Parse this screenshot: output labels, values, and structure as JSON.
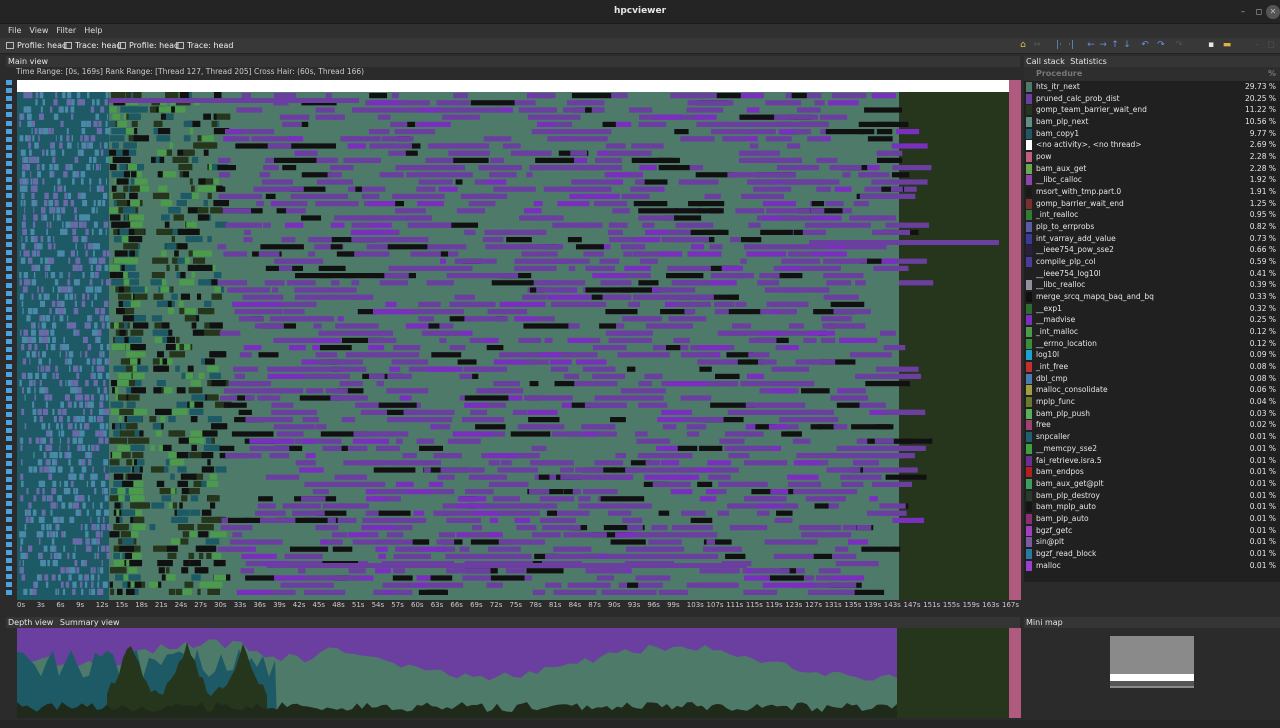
{
  "window": {
    "title": "hpcviewer"
  },
  "menu": [
    "File",
    "View",
    "Filter",
    "Help"
  ],
  "tabs": [
    "Profile: head",
    "Trace: head",
    "Profile: head",
    "Trace: head"
  ],
  "main": {
    "tab_label": "Main view",
    "info": "Time Range: [0s, 169s]  Rank Range: [Thread 127, Thread 205]  Cross Hair: (60s, Thread 166)",
    "xticks": [
      "0s",
      "3s",
      "6s",
      "9s",
      "12s",
      "15s",
      "18s",
      "21s",
      "24s",
      "27s",
      "30s",
      "33s",
      "36s",
      "39s",
      "42s",
      "45s",
      "48s",
      "51s",
      "54s",
      "57s",
      "60s",
      "63s",
      "66s",
      "69s",
      "72s",
      "75s",
      "78s",
      "81s",
      "84s",
      "87s",
      "90s",
      "93s",
      "96s",
      "99s",
      "103s",
      "107s",
      "111s",
      "115s",
      "119s",
      "123s",
      "127s",
      "131s",
      "135s",
      "139s",
      "143s",
      "147s",
      "151s",
      "155s",
      "159s",
      "163s",
      "167s"
    ]
  },
  "bottom": {
    "depth_tab": "Depth view",
    "summary_tab": "Summary view"
  },
  "right": {
    "tabs": [
      "Call stack",
      "Statistics"
    ],
    "col_procedure": "Procedure",
    "col_pct": "%",
    "rows": [
      {
        "name": "hts_itr_next",
        "pct": "29.73 %",
        "color": "#4e7a6a"
      },
      {
        "name": "pruned_calc_prob_dist",
        "pct": "20.25 %",
        "color": "#6b3fa0"
      },
      {
        "name": "gomp_team_barrier_wait_end",
        "pct": "11.22 %",
        "color": "#26361d"
      },
      {
        "name": "bam_plp_next",
        "pct": "10.56 %",
        "color": "#5f8f80"
      },
      {
        "name": "bam_copy1",
        "pct": "9.77 %",
        "color": "#1e5a66"
      },
      {
        "name": "<no activity>, <no thread>",
        "pct": "2.69 %",
        "color": "#ffffff"
      },
      {
        "name": "pow",
        "pct": "2.28 %",
        "color": "#c06080"
      },
      {
        "name": "bam_aux_get",
        "pct": "2.28 %",
        "color": "#6aa84f"
      },
      {
        "name": "__libc_calloc",
        "pct": "1.92 %",
        "color": "#8e44ad"
      },
      {
        "name": "msort_with_tmp.part.0",
        "pct": "1.91 %",
        "color": "#1a1a1a"
      },
      {
        "name": "gomp_barrier_wait_end",
        "pct": "1.25 %",
        "color": "#7a2e2e"
      },
      {
        "name": "_int_realloc",
        "pct": "0.95 %",
        "color": "#2e7d32"
      },
      {
        "name": "plp_to_errprobs",
        "pct": "0.82 %",
        "color": "#5a5aa8"
      },
      {
        "name": "int_varray_add_value",
        "pct": "0.73 %",
        "color": "#3a3a9a"
      },
      {
        "name": "__ieee754_pow_sse2",
        "pct": "0.66 %",
        "color": "#2a1f40"
      },
      {
        "name": "compile_plp_col",
        "pct": "0.59 %",
        "color": "#4b3a9a"
      },
      {
        "name": "__ieee754_log10l",
        "pct": "0.41 %",
        "color": "#202020"
      },
      {
        "name": "__libc_realloc",
        "pct": "0.39 %",
        "color": "#9090a0"
      },
      {
        "name": "merge_srcq_mapq_baq_and_bq",
        "pct": "0.33 %",
        "color": "#101010"
      },
      {
        "name": "__exp1",
        "pct": "0.32 %",
        "color": "#2e6b2e"
      },
      {
        "name": "__madvise",
        "pct": "0.25 %",
        "color": "#7b2fbf"
      },
      {
        "name": "_int_malloc",
        "pct": "0.12 %",
        "color": "#4c9a4c"
      },
      {
        "name": "__errno_location",
        "pct": "0.12 %",
        "color": "#3c8c3c"
      },
      {
        "name": "log10l",
        "pct": "0.09 %",
        "color": "#1aa3d0"
      },
      {
        "name": "_int_free",
        "pct": "0.08 %",
        "color": "#c03030"
      },
      {
        "name": "dbl_cmp",
        "pct": "0.08 %",
        "color": "#4a7ab0"
      },
      {
        "name": "malloc_consolidate",
        "pct": "0.06 %",
        "color": "#a0a040"
      },
      {
        "name": "mplp_func",
        "pct": "0.04 %",
        "color": "#6a7a2a"
      },
      {
        "name": "bam_plp_push",
        "pct": "0.03 %",
        "color": "#5ab05a"
      },
      {
        "name": "free",
        "pct": "0.02 %",
        "color": "#a04070"
      },
      {
        "name": "snpcaller",
        "pct": "0.01 %",
        "color": "#1f5f6f"
      },
      {
        "name": "__memcpy_sse2",
        "pct": "0.01 %",
        "color": "#3fa03f"
      },
      {
        "name": "fai_retrieve.isra.5",
        "pct": "0.01 %",
        "color": "#6a2f8f"
      },
      {
        "name": "bam_endpos",
        "pct": "0.01 %",
        "color": "#b02020"
      },
      {
        "name": "bam_aux_get@plt",
        "pct": "0.01 %",
        "color": "#3aa05a"
      },
      {
        "name": "bam_plp_destroy",
        "pct": "0.01 %",
        "color": "#2a3a2a"
      },
      {
        "name": "bam_mplp_auto",
        "pct": "0.01 %",
        "color": "#151515"
      },
      {
        "name": "bam_plp_auto",
        "pct": "0.01 %",
        "color": "#8a2f6f"
      },
      {
        "name": "bgzf_getc",
        "pct": "0.01 %",
        "color": "#a040c0"
      },
      {
        "name": "sin@plt",
        "pct": "0.01 %",
        "color": "#7a5aa0"
      },
      {
        "name": "bgzf_read_block",
        "pct": "0.01 %",
        "color": "#2a7aa0"
      },
      {
        "name": "malloc",
        "pct": "0.01 %",
        "color": "#9a3fd0"
      }
    ]
  },
  "mini_map": {
    "label": "Mini map"
  },
  "colors": {
    "purple": "#6b3fa0",
    "green": "#4e7a6a",
    "dark": "#26361d",
    "teal": "#1e5a66",
    "pink": "#b05a80"
  }
}
